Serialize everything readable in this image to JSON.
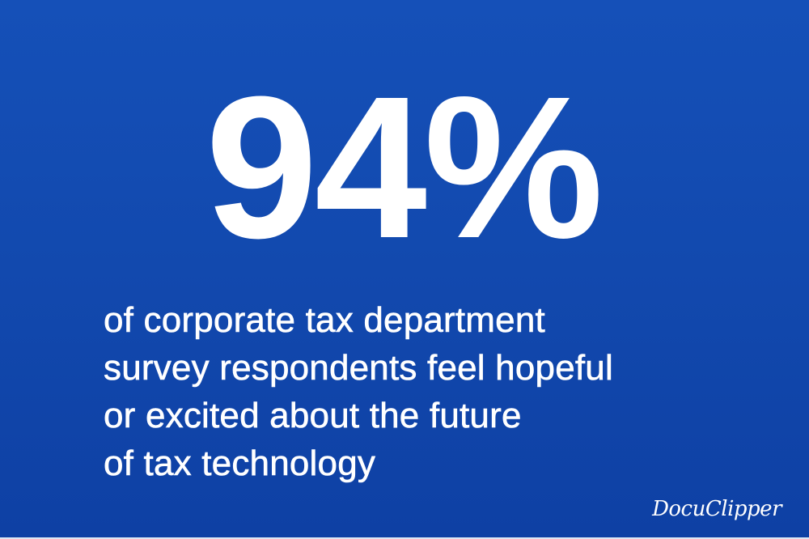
{
  "stat": {
    "value": "94%"
  },
  "caption": {
    "lines": [
      "of corporate tax department",
      "survey respondents feel hopeful",
      "or excited about the future",
      "of tax technology"
    ]
  },
  "brand": {
    "logo_text": "DocuClipper"
  },
  "colors": {
    "background": "#1249AE",
    "text": "#FFFFFF"
  }
}
